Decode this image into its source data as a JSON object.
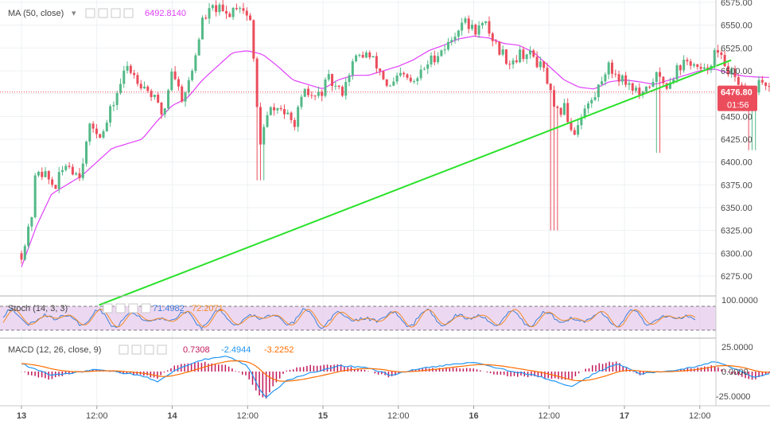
{
  "header": {
    "ma_label": "MA (50, close)",
    "ma_value": "6492.8140"
  },
  "price_tag": {
    "value": "6476.80",
    "countdown": "01:56"
  },
  "stoch": {
    "label": "Stoch (14, 3, 3)",
    "k": "71.4982",
    "d": "72.2071",
    "axis_top": "100.0000"
  },
  "macd": {
    "label": "MACD (12, 26, close, 9)",
    "hist": "0.7308",
    "macd": "-2.4944",
    "signal": "-3.2252",
    "axis": [
      "25.0000",
      "0.0000",
      "-25.0000"
    ]
  },
  "colors": {
    "up": "#53b987",
    "down": "#eb4d5c",
    "ma": "#e040fb",
    "trend": "#2ae12a",
    "stoch_k": "#3f7fd8",
    "stoch_d": "#f28c28",
    "macd_line": "#2196f3",
    "signal_line": "#ff6d00",
    "hist": "#c2185b",
    "price_tag": "#eb4d5c"
  },
  "chart_data": {
    "type": "candlestick",
    "y_ticks": [
      "6575.00",
      "6550.00",
      "6525.00",
      "6500.00",
      "6475.00",
      "6450.00",
      "6425.00",
      "6400.00",
      "6375.00",
      "6350.00",
      "6325.00",
      "6300.00",
      "6275.00"
    ],
    "x_ticks": [
      "13",
      "12:00",
      "14",
      "12:00",
      "15",
      "12:00",
      "16",
      "12:00",
      "17",
      "12:00"
    ],
    "ylim": [
      6255,
      6580
    ],
    "last_price": 6476.8,
    "ma_value": 6492.814,
    "trendline": {
      "from": [
        1.0,
        6265
      ],
      "to": [
        4.65,
        6510
      ]
    },
    "ohlc_anchors": [
      [
        0.0,
        6300
      ],
      [
        0.06,
        6330
      ],
      [
        0.1,
        6395
      ],
      [
        0.16,
        6385
      ],
      [
        0.22,
        6372
      ],
      [
        0.3,
        6400
      ],
      [
        0.38,
        6385
      ],
      [
        0.46,
        6440
      ],
      [
        0.54,
        6430
      ],
      [
        0.62,
        6470
      ],
      [
        0.7,
        6505
      ],
      [
        0.78,
        6490
      ],
      [
        0.86,
        6475
      ],
      [
        0.94,
        6450
      ],
      [
        1.0,
        6505
      ],
      [
        1.06,
        6470
      ],
      [
        1.12,
        6490
      ],
      [
        1.2,
        6555
      ],
      [
        1.28,
        6570
      ],
      [
        1.36,
        6560
      ],
      [
        1.44,
        6575
      ],
      [
        1.52,
        6555
      ],
      [
        1.58,
        6420
      ],
      [
        1.64,
        6455
      ],
      [
        1.72,
        6460
      ],
      [
        1.8,
        6440
      ],
      [
        1.88,
        6475
      ],
      [
        1.96,
        6470
      ],
      [
        2.04,
        6490
      ],
      [
        2.12,
        6475
      ],
      [
        2.2,
        6510
      ],
      [
        2.28,
        6520
      ],
      [
        2.36,
        6505
      ],
      [
        2.44,
        6480
      ],
      [
        2.52,
        6495
      ],
      [
        2.6,
        6485
      ],
      [
        2.68,
        6505
      ],
      [
        2.76,
        6520
      ],
      [
        2.84,
        6530
      ],
      [
        2.92,
        6555
      ],
      [
        3.0,
        6545
      ],
      [
        3.08,
        6550
      ],
      [
        3.16,
        6525
      ],
      [
        3.24,
        6510
      ],
      [
        3.32,
        6520
      ],
      [
        3.4,
        6515
      ],
      [
        3.48,
        6495
      ],
      [
        3.54,
        6450
      ],
      [
        3.6,
        6460
      ],
      [
        3.66,
        6430
      ],
      [
        3.72,
        6455
      ],
      [
        3.8,
        6470
      ],
      [
        3.88,
        6505
      ],
      [
        3.96,
        6495
      ],
      [
        4.04,
        6485
      ],
      [
        4.12,
        6470
      ],
      [
        4.2,
        6495
      ],
      [
        4.28,
        6485
      ],
      [
        4.36,
        6505
      ],
      [
        4.44,
        6510
      ],
      [
        4.52,
        6495
      ],
      [
        4.6,
        6520
      ],
      [
        4.68,
        6505
      ],
      [
        4.76,
        6480
      ],
      [
        4.84,
        6470
      ],
      [
        4.9,
        6490
      ],
      [
        4.96,
        6476.8
      ]
    ],
    "ma_anchors": [
      [
        0.0,
        6285
      ],
      [
        0.1,
        6330
      ],
      [
        0.2,
        6365
      ],
      [
        0.3,
        6375
      ],
      [
        0.4,
        6385
      ],
      [
        0.5,
        6400
      ],
      [
        0.6,
        6415
      ],
      [
        0.7,
        6420
      ],
      [
        0.8,
        6425
      ],
      [
        0.9,
        6445
      ],
      [
        1.0,
        6462
      ],
      [
        1.1,
        6470
      ],
      [
        1.2,
        6490
      ],
      [
        1.3,
        6505
      ],
      [
        1.4,
        6520
      ],
      [
        1.5,
        6522
      ],
      [
        1.6,
        6518
      ],
      [
        1.7,
        6505
      ],
      [
        1.8,
        6490
      ],
      [
        1.9,
        6485
      ],
      [
        2.0,
        6480
      ],
      [
        2.1,
        6490
      ],
      [
        2.2,
        6495
      ],
      [
        2.3,
        6495
      ],
      [
        2.4,
        6500
      ],
      [
        2.5,
        6505
      ],
      [
        2.6,
        6512
      ],
      [
        2.7,
        6522
      ],
      [
        2.8,
        6528
      ],
      [
        2.9,
        6535
      ],
      [
        3.0,
        6538
      ],
      [
        3.1,
        6536
      ],
      [
        3.2,
        6530
      ],
      [
        3.3,
        6528
      ],
      [
        3.4,
        6520
      ],
      [
        3.5,
        6505
      ],
      [
        3.6,
        6490
      ],
      [
        3.7,
        6482
      ],
      [
        3.8,
        6480
      ],
      [
        3.9,
        6488
      ],
      [
        4.0,
        6490
      ],
      [
        4.1,
        6488
      ],
      [
        4.2,
        6485
      ],
      [
        4.3,
        6490
      ],
      [
        4.4,
        6495
      ],
      [
        4.5,
        6500
      ],
      [
        4.6,
        6502
      ],
      [
        4.7,
        6497
      ],
      [
        4.8,
        6494
      ],
      [
        4.9,
        6493
      ],
      [
        4.96,
        6492.8
      ]
    ]
  }
}
